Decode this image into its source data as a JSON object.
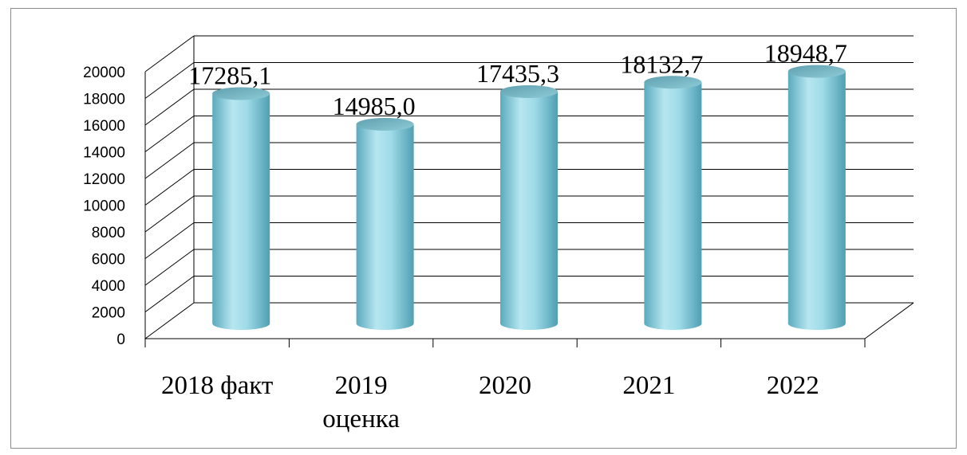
{
  "chart_data": {
    "type": "bar",
    "style": "3d-cylinder",
    "categories": [
      [
        "2018 факт"
      ],
      [
        "2019",
        "оценка"
      ],
      [
        "2020"
      ],
      [
        "2021"
      ],
      [
        "2022"
      ]
    ],
    "values": [
      17285.1,
      14985.0,
      17435.3,
      18132.7,
      18948.7
    ],
    "data_labels": [
      "17285,1",
      "14985,0",
      "17435,3",
      "18132,7",
      "18948,7"
    ],
    "y_ticks": [
      "0",
      "2000",
      "4000",
      "6000",
      "8000",
      "10000",
      "12000",
      "14000",
      "16000",
      "18000",
      "20000"
    ],
    "ylim": [
      0,
      20000
    ],
    "grid": true,
    "colors": {
      "bar": "#8fd3e2",
      "bar_light": "#d8f3f9",
      "bar_dark": "#4f9fb3",
      "grid": "#000000",
      "frame": "#8c8c8c"
    }
  }
}
